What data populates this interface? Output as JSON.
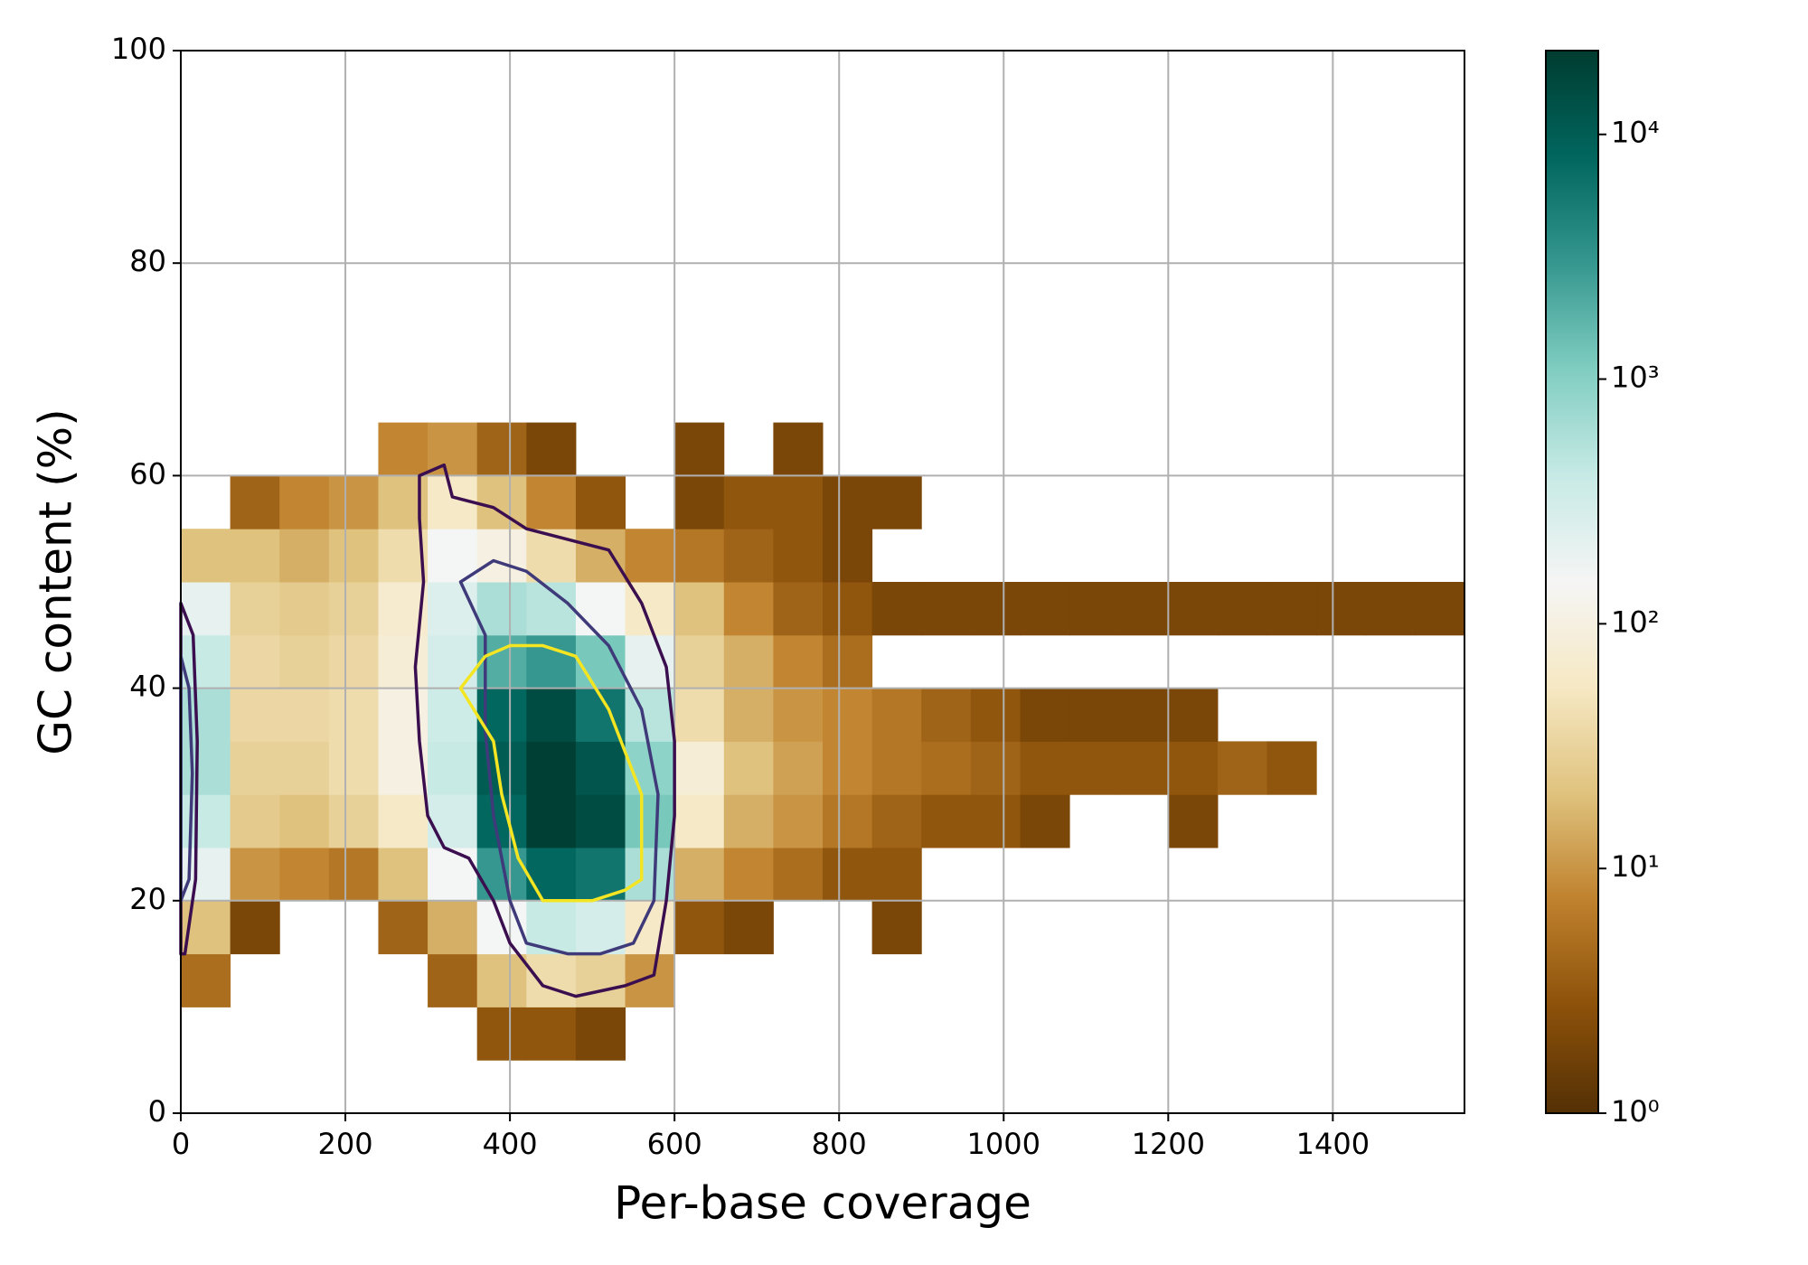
{
  "chart_data": {
    "type": "hist2d",
    "x_label": "Per-base coverage",
    "y_label": "GC content (%)",
    "xlim": [
      0,
      1560
    ],
    "ylim": [
      0,
      100
    ],
    "xticks": [
      0,
      200,
      400,
      600,
      800,
      1000,
      1200,
      1400
    ],
    "yticks": [
      0,
      20,
      40,
      60,
      80,
      100
    ],
    "grid": true,
    "log_color": true,
    "colormap": [
      "#543005",
      "#8c510a",
      "#bf812d",
      "#dfc27d",
      "#f6e8c3",
      "#f5f5f5",
      "#c7eae5",
      "#80cdc1",
      "#35978f",
      "#01665e",
      "#003c30"
    ],
    "clim": [
      1,
      22000
    ],
    "cticks": [
      {
        "value": 1,
        "label": "10⁰"
      },
      {
        "value": 10,
        "label": "10¹"
      },
      {
        "value": 100,
        "label": "10²"
      },
      {
        "value": 1000,
        "label": "10³"
      },
      {
        "value": 10000,
        "label": "10⁴"
      }
    ],
    "x_bins": [
      0,
      60,
      120,
      180,
      240,
      300,
      360,
      420,
      480,
      540,
      600,
      660,
      720,
      780,
      840,
      900,
      960,
      1020,
      1080,
      1140,
      1200,
      1260,
      1320,
      1380,
      1440,
      1500,
      1560
    ],
    "y_bins": [
      0,
      5,
      10,
      15,
      20,
      25,
      30,
      35,
      40,
      45,
      50,
      55,
      60,
      65,
      70,
      75,
      80,
      85,
      90,
      95,
      100
    ],
    "counts": [
      [
        null,
        null,
        null,
        null,
        null,
        null,
        null,
        null,
        null,
        null,
        null,
        null,
        null,
        null,
        null,
        null,
        null,
        null,
        null,
        null,
        null,
        null,
        null,
        null,
        null,
        null
      ],
      [
        null,
        null,
        null,
        null,
        null,
        null,
        3,
        3,
        2,
        null,
        null,
        null,
        null,
        null,
        null,
        null,
        null,
        null,
        null,
        null,
        null,
        null,
        null,
        null,
        null,
        null
      ],
      [
        5,
        null,
        null,
        null,
        null,
        4,
        20,
        40,
        30,
        10,
        null,
        null,
        null,
        null,
        null,
        null,
        null,
        null,
        null,
        null,
        null,
        null,
        null,
        null,
        null,
        null
      ],
      [
        20,
        2,
        null,
        null,
        4,
        15,
        150,
        400,
        300,
        60,
        3,
        2,
        null,
        null,
        2,
        null,
        null,
        null,
        null,
        null,
        null,
        null,
        null,
        null,
        null,
        null
      ],
      [
        200,
        10,
        8,
        6,
        20,
        150,
        3000,
        8000,
        6000,
        600,
        15,
        8,
        5,
        3,
        3,
        null,
        null,
        null,
        null,
        null,
        null,
        null,
        null,
        null,
        null,
        null
      ],
      [
        400,
        25,
        20,
        30,
        60,
        300,
        8000,
        20000,
        15000,
        1200,
        60,
        15,
        10,
        6,
        4,
        3,
        3,
        2,
        null,
        null,
        2,
        null,
        null,
        null,
        null,
        null
      ],
      [
        600,
        30,
        30,
        40,
        100,
        400,
        10000,
        20000,
        12000,
        900,
        80,
        20,
        12,
        8,
        6,
        5,
        4,
        3,
        3,
        3,
        3,
        4,
        3,
        null,
        null,
        null
      ],
      [
        600,
        35,
        35,
        40,
        100,
        350,
        8000,
        15000,
        6000,
        500,
        40,
        15,
        10,
        8,
        6,
        4,
        3,
        2,
        2,
        2,
        2,
        null,
        null,
        null,
        null,
        null
      ],
      [
        400,
        35,
        30,
        35,
        80,
        300,
        2000,
        3000,
        1200,
        200,
        30,
        15,
        8,
        5,
        null,
        null,
        null,
        null,
        null,
        null,
        null,
        null,
        null,
        null,
        null,
        null
      ],
      [
        200,
        30,
        25,
        30,
        70,
        250,
        600,
        500,
        150,
        60,
        20,
        8,
        4,
        3,
        2,
        2,
        2,
        2,
        2,
        2,
        2,
        2,
        2,
        2,
        2,
        2
      ],
      [
        20,
        20,
        15,
        20,
        40,
        150,
        100,
        40,
        15,
        8,
        6,
        4,
        3,
        2,
        null,
        null,
        null,
        null,
        null,
        null,
        null,
        null,
        null,
        null,
        null,
        null
      ],
      [
        null,
        4,
        8,
        10,
        20,
        60,
        20,
        8,
        3,
        null,
        2,
        3,
        3,
        2,
        2,
        null,
        null,
        null,
        null,
        null,
        null,
        null,
        null,
        null,
        null,
        null
      ],
      [
        null,
        null,
        null,
        null,
        8,
        10,
        4,
        2,
        null,
        null,
        2,
        null,
        2,
        null,
        null,
        null,
        null,
        null,
        null,
        null,
        null,
        null,
        null,
        null,
        null,
        null
      ],
      [
        null,
        null,
        null,
        null,
        null,
        null,
        null,
        null,
        null,
        null,
        null,
        null,
        null,
        null,
        null,
        null,
        null,
        null,
        null,
        null,
        null,
        null,
        null,
        null,
        null,
        null
      ],
      [
        null,
        null,
        null,
        null,
        null,
        null,
        null,
        null,
        null,
        null,
        null,
        null,
        null,
        null,
        null,
        null,
        null,
        null,
        null,
        null,
        null,
        null,
        null,
        null,
        null,
        null
      ],
      [
        null,
        null,
        null,
        null,
        null,
        null,
        null,
        null,
        null,
        null,
        null,
        null,
        null,
        null,
        null,
        null,
        null,
        null,
        null,
        null,
        null,
        null,
        null,
        null,
        null,
        null
      ],
      [
        null,
        null,
        null,
        null,
        null,
        null,
        null,
        null,
        null,
        null,
        null,
        null,
        null,
        null,
        null,
        null,
        null,
        null,
        null,
        null,
        null,
        null,
        null,
        null,
        null,
        null
      ],
      [
        null,
        null,
        null,
        null,
        null,
        null,
        null,
        null,
        null,
        null,
        null,
        null,
        null,
        null,
        null,
        null,
        null,
        null,
        null,
        null,
        null,
        null,
        null,
        null,
        null,
        null
      ],
      [
        null,
        null,
        null,
        null,
        null,
        null,
        null,
        null,
        null,
        null,
        null,
        null,
        null,
        null,
        null,
        null,
        null,
        null,
        null,
        null,
        null,
        null,
        null,
        null,
        null,
        null
      ],
      [
        null,
        null,
        null,
        null,
        null,
        null,
        null,
        null,
        null,
        null,
        null,
        null,
        null,
        null,
        null,
        null,
        null,
        null,
        null,
        null,
        null,
        null,
        null,
        null,
        null,
        null
      ]
    ],
    "contours": [
      {
        "color": "#3b0f4f",
        "x": [
          290,
          320,
          330,
          380,
          420,
          470,
          520,
          560,
          590,
          600,
          600,
          590,
          575,
          540,
          480,
          440,
          400,
          380,
          350,
          320,
          300,
          290,
          285,
          295,
          290
        ],
        "y": [
          60,
          61,
          58,
          57,
          55,
          54,
          53,
          48,
          42,
          35,
          28,
          20,
          13,
          12,
          11,
          12,
          16,
          20,
          24,
          25,
          28,
          35,
          42,
          50,
          56
        ]
      },
      {
        "color": "#3b0f4f",
        "x": [
          0,
          15,
          20,
          18,
          5,
          0
        ],
        "y": [
          48,
          45,
          35,
          22,
          15,
          15
        ]
      },
      {
        "color": "#3f3a7a",
        "x": [
          340,
          380,
          420,
          470,
          520,
          560,
          580,
          575,
          550,
          510,
          470,
          420,
          400,
          380,
          370,
          370
        ],
        "y": [
          50,
          52,
          51,
          48,
          44,
          38,
          30,
          20,
          16,
          15,
          15,
          16,
          20,
          28,
          36,
          45
        ]
      },
      {
        "color": "#3f3a7a",
        "x": [
          0,
          10,
          14,
          10,
          0
        ],
        "y": [
          43,
          40,
          32,
          22,
          20
        ]
      },
      {
        "color": "#f4e523",
        "x": [
          340,
          370,
          400,
          440,
          480,
          520,
          560,
          560,
          540,
          500,
          470,
          440,
          410,
          390,
          380
        ],
        "y": [
          40,
          43,
          44,
          44,
          43,
          38,
          30,
          22,
          21,
          20,
          20,
          20,
          24,
          30,
          35
        ]
      }
    ]
  }
}
